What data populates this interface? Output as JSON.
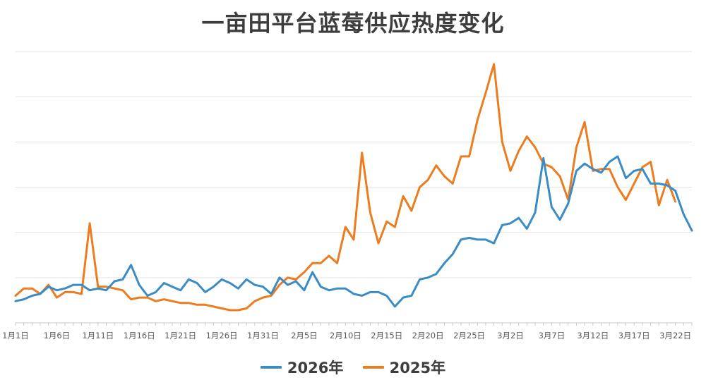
{
  "chart_data": {
    "type": "line",
    "title": "一亩田平台蓝莓供应热度变化",
    "xlabel": "",
    "ylabel": "",
    "grid": true,
    "legend": "bottom",
    "x_tick_labels": [
      "1月1日",
      "1月6日",
      "1月11日",
      "1月16日",
      "1月21日",
      "1月26日",
      "1月31日",
      "2月5日",
      "2月10日",
      "2月15日",
      "2月20日",
      "2月25日",
      "3月2日",
      "3月7日",
      "3月12日",
      "3月17日",
      "3月22日"
    ],
    "x_tick_step": 5,
    "series": [
      {
        "name": "2026年",
        "color": "#3b8bc5",
        "values": [
          12,
          13,
          15,
          16,
          20,
          18,
          19,
          21,
          21,
          18,
          19,
          18,
          23,
          24,
          32,
          21,
          15,
          17,
          22,
          20,
          18,
          24,
          22,
          17,
          20,
          24,
          22,
          19,
          24,
          21,
          20,
          16,
          25,
          21,
          23,
          18,
          28,
          20,
          18,
          19,
          19,
          16,
          15,
          17,
          17,
          15,
          9,
          14,
          15,
          24,
          25,
          27,
          33,
          38,
          46,
          47,
          46,
          46,
          44,
          54,
          55,
          58,
          52,
          61,
          91,
          64,
          57,
          66,
          84,
          88,
          85,
          83,
          89,
          92,
          80,
          84,
          85,
          77,
          77,
          76,
          73,
          60,
          51
        ]
      },
      {
        "name": "2025年",
        "color": "#ec7c20",
        "values": [
          15,
          19,
          19,
          16,
          21,
          14,
          17,
          17,
          16,
          55,
          20,
          20,
          19,
          18,
          13,
          14,
          14,
          12,
          13,
          12,
          11,
          11,
          10,
          10,
          9,
          8,
          7,
          7,
          8,
          12,
          14,
          15,
          21,
          25,
          24,
          28,
          33,
          33,
          37,
          33,
          53,
          46,
          94,
          61,
          44,
          56,
          53,
          70,
          62,
          75,
          79,
          87,
          81,
          77,
          92,
          92,
          112,
          127,
          143,
          100,
          84,
          95,
          103,
          97,
          88,
          86,
          81,
          68,
          97,
          111,
          84,
          85,
          85,
          75,
          68,
          77,
          86,
          89,
          65,
          79,
          67
        ]
      }
    ]
  }
}
